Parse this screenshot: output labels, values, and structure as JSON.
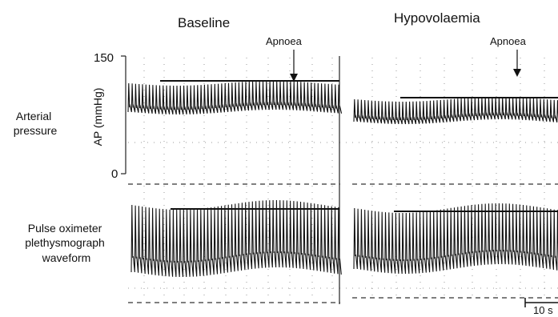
{
  "chart_data": {
    "type": "line",
    "panels": [
      {
        "title": "Baseline",
        "annotation": "Apnoea"
      },
      {
        "title": "Hypovolaemia",
        "annotation": "Apnoea"
      }
    ],
    "rows": [
      {
        "label_lines": [
          "Arterial",
          "pressure"
        ],
        "ylabel": "AP (mmHg)",
        "ylim": [
          0,
          150
        ],
        "yticks": [
          "150",
          "0"
        ]
      },
      {
        "label_lines": [
          "Pulse oximeter",
          "plethysmograph",
          "waveform"
        ]
      }
    ],
    "scale_bar": "10 s"
  }
}
